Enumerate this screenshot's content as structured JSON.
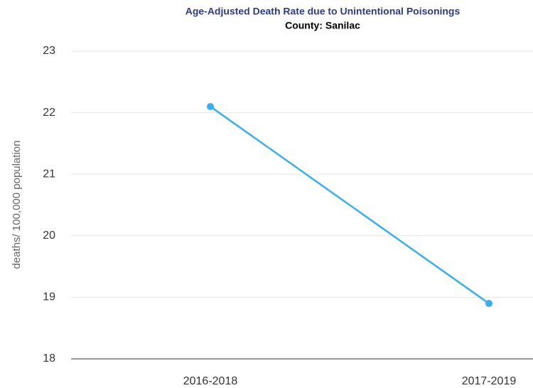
{
  "chart_data": {
    "type": "line",
    "title": "Age-Adjusted Death Rate due to Unintentional Poisonings",
    "subtitle": "County: Sanilac",
    "y_label": "deaths/ 100,000 population",
    "categories": [
      "2016-2018",
      "2017-2019"
    ],
    "values": [
      22.1,
      18.9
    ],
    "color": "#3aaef2",
    "ylim": [
      18,
      23
    ],
    "yticks": [
      18,
      19,
      20,
      21,
      22,
      23
    ],
    "grid": true
  }
}
